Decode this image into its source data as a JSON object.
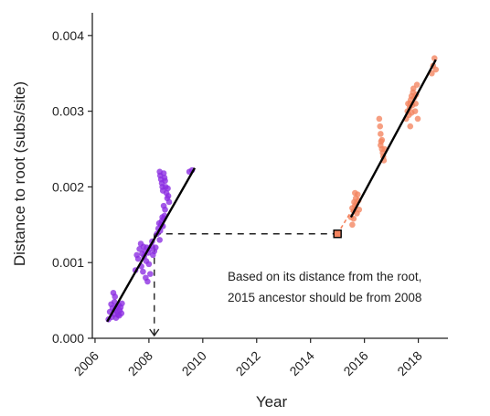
{
  "chart_data": {
    "type": "scatter",
    "xlabel": "Year",
    "ylabel": "Distance to root (subs/site)",
    "xlim": [
      2005.9,
      2019.1
    ],
    "ylim": [
      0,
      0.0043
    ],
    "xticks": [
      2006,
      2008,
      2010,
      2012,
      2014,
      2016,
      2018
    ],
    "xtick_labels": [
      "2006",
      "2008",
      "2010",
      "2012",
      "2014",
      "2016",
      "2018"
    ],
    "yticks": [
      0,
      0.001,
      0.002,
      0.003,
      0.004
    ],
    "ytick_labels": [
      "0.000",
      "0.001",
      "0.002",
      "0.003",
      "0.004"
    ],
    "grid": false,
    "legend": "none",
    "series": [
      {
        "color": "#8a2be2",
        "points": [
          [
            2006.5,
            0.00025
          ],
          [
            2006.55,
            0.00035
          ],
          [
            2006.6,
            0.00045
          ],
          [
            2006.62,
            0.00028
          ],
          [
            2006.65,
            0.0004
          ],
          [
            2006.7,
            0.00032
          ],
          [
            2006.72,
            0.00048
          ],
          [
            2006.75,
            0.00038
          ],
          [
            2006.78,
            0.00027
          ],
          [
            2006.8,
            0.00042
          ],
          [
            2006.83,
            0.00035
          ],
          [
            2006.85,
            0.00031
          ],
          [
            2006.88,
            0.00044
          ],
          [
            2006.9,
            0.0003
          ],
          [
            2006.92,
            0.00037
          ],
          [
            2006.95,
            0.00041
          ],
          [
            2006.98,
            0.00033
          ],
          [
            2007.0,
            0.00046
          ],
          [
            2006.68,
            0.0006
          ],
          [
            2006.74,
            0.00055
          ],
          [
            2007.5,
            0.0009
          ],
          [
            2007.55,
            0.0011
          ],
          [
            2007.6,
            0.00105
          ],
          [
            2007.65,
            0.00118
          ],
          [
            2007.7,
            0.00125
          ],
          [
            2007.72,
            0.00095
          ],
          [
            2007.75,
            0.00112
          ],
          [
            2007.78,
            0.00088
          ],
          [
            2007.8,
            0.00121
          ],
          [
            2007.82,
            0.00108
          ],
          [
            2007.85,
            0.00115
          ],
          [
            2007.88,
            0.0008
          ],
          [
            2007.9,
            0.00102
          ],
          [
            2007.92,
            0.0012
          ],
          [
            2007.95,
            0.00075
          ],
          [
            2007.98,
            0.00113
          ],
          [
            2008.0,
            0.00098
          ],
          [
            2008.02,
            0.00118
          ],
          [
            2008.05,
            0.00085
          ],
          [
            2008.1,
            0.00122
          ],
          [
            2008.12,
            0.00128
          ],
          [
            2008.15,
            0.0011
          ],
          [
            2008.2,
            0.00115
          ],
          [
            2008.25,
            0.0012
          ],
          [
            2008.3,
            0.00138
          ],
          [
            2008.35,
            0.00145
          ],
          [
            2008.38,
            0.00152
          ],
          [
            2008.4,
            0.0013
          ],
          [
            2008.42,
            0.00142
          ],
          [
            2008.45,
            0.0015
          ],
          [
            2008.48,
            0.00155
          ],
          [
            2008.5,
            0.0016
          ],
          [
            2008.52,
            0.00148
          ],
          [
            2008.55,
            0.00158
          ],
          [
            2008.58,
            0.00162
          ],
          [
            2008.4,
            0.0022
          ],
          [
            2008.42,
            0.00215
          ],
          [
            2008.45,
            0.0021
          ],
          [
            2008.48,
            0.00205
          ],
          [
            2008.5,
            0.002
          ],
          [
            2008.52,
            0.00195
          ],
          [
            2008.55,
            0.00218
          ],
          [
            2008.58,
            0.00212
          ],
          [
            2008.6,
            0.00208
          ],
          [
            2008.62,
            0.002
          ],
          [
            2008.65,
            0.00192
          ],
          [
            2008.68,
            0.00185
          ],
          [
            2008.7,
            0.00198
          ],
          [
            2008.72,
            0.00188
          ],
          [
            2008.75,
            0.0018
          ],
          [
            2008.55,
            0.00175
          ],
          [
            2008.6,
            0.0017
          ],
          [
            2009.5,
            0.0022
          ],
          [
            2009.6,
            0.00222
          ]
        ]
      },
      {
        "color": "#f4845f",
        "points": [
          [
            2015.5,
            0.0016
          ],
          [
            2015.55,
            0.00172
          ],
          [
            2015.6,
            0.00168
          ],
          [
            2015.62,
            0.0018
          ],
          [
            2015.65,
            0.00175
          ],
          [
            2015.68,
            0.00185
          ],
          [
            2015.7,
            0.00178
          ],
          [
            2015.72,
            0.00165
          ],
          [
            2015.75,
            0.0019
          ],
          [
            2015.78,
            0.00182
          ],
          [
            2015.8,
            0.0017
          ],
          [
            2015.55,
            0.0015
          ],
          [
            2015.6,
            0.00158
          ],
          [
            2015.65,
            0.00192
          ],
          [
            2016.55,
            0.0029
          ],
          [
            2016.58,
            0.0028
          ],
          [
            2016.6,
            0.0027
          ],
          [
            2016.62,
            0.0026
          ],
          [
            2016.65,
            0.0025
          ],
          [
            2016.68,
            0.00245
          ],
          [
            2016.7,
            0.0024
          ],
          [
            2016.72,
            0.00235
          ],
          [
            2016.75,
            0.0025
          ],
          [
            2016.6,
            0.00255
          ],
          [
            2016.65,
            0.00262
          ],
          [
            2017.55,
            0.0029
          ],
          [
            2017.6,
            0.003
          ],
          [
            2017.62,
            0.0031
          ],
          [
            2017.65,
            0.00295
          ],
          [
            2017.68,
            0.00305
          ],
          [
            2017.7,
            0.0031
          ],
          [
            2017.72,
            0.00315
          ],
          [
            2017.75,
            0.0032
          ],
          [
            2017.78,
            0.00308
          ],
          [
            2017.8,
            0.00325
          ],
          [
            2017.82,
            0.0033
          ],
          [
            2017.85,
            0.00318
          ],
          [
            2017.88,
            0.003
          ],
          [
            2017.9,
            0.0031
          ],
          [
            2017.92,
            0.00322
          ],
          [
            2017.95,
            0.00335
          ],
          [
            2017.98,
            0.0029
          ],
          [
            2017.7,
            0.0028
          ],
          [
            2017.75,
            0.00298
          ],
          [
            2018.5,
            0.0035
          ],
          [
            2018.55,
            0.0036
          ],
          [
            2018.6,
            0.0037
          ],
          [
            2018.65,
            0.00355
          ]
        ]
      }
    ],
    "fit_lines": [
      {
        "color": "#000000",
        "x": [
          2006.45,
          2009.7
        ],
        "y": [
          0.00022,
          0.00225
        ]
      },
      {
        "color": "#000000",
        "x": [
          2015.5,
          2018.65
        ],
        "y": [
          0.0016,
          0.00368
        ]
      }
    ],
    "orange_extrapolation": {
      "color": "#f4845f",
      "x": [
        2015.0,
        2015.55
      ],
      "y": [
        0.00138,
        0.0017
      ]
    },
    "ancestor_marker": {
      "x": 2015.0,
      "y": 0.00138,
      "color": "#f4845f"
    },
    "reference": {
      "x": 2008.2,
      "y": 0.00138
    },
    "annotation": {
      "line1": "Based on its distance from the root,",
      "line2": "2015 ancestor should be from 2008"
    }
  }
}
